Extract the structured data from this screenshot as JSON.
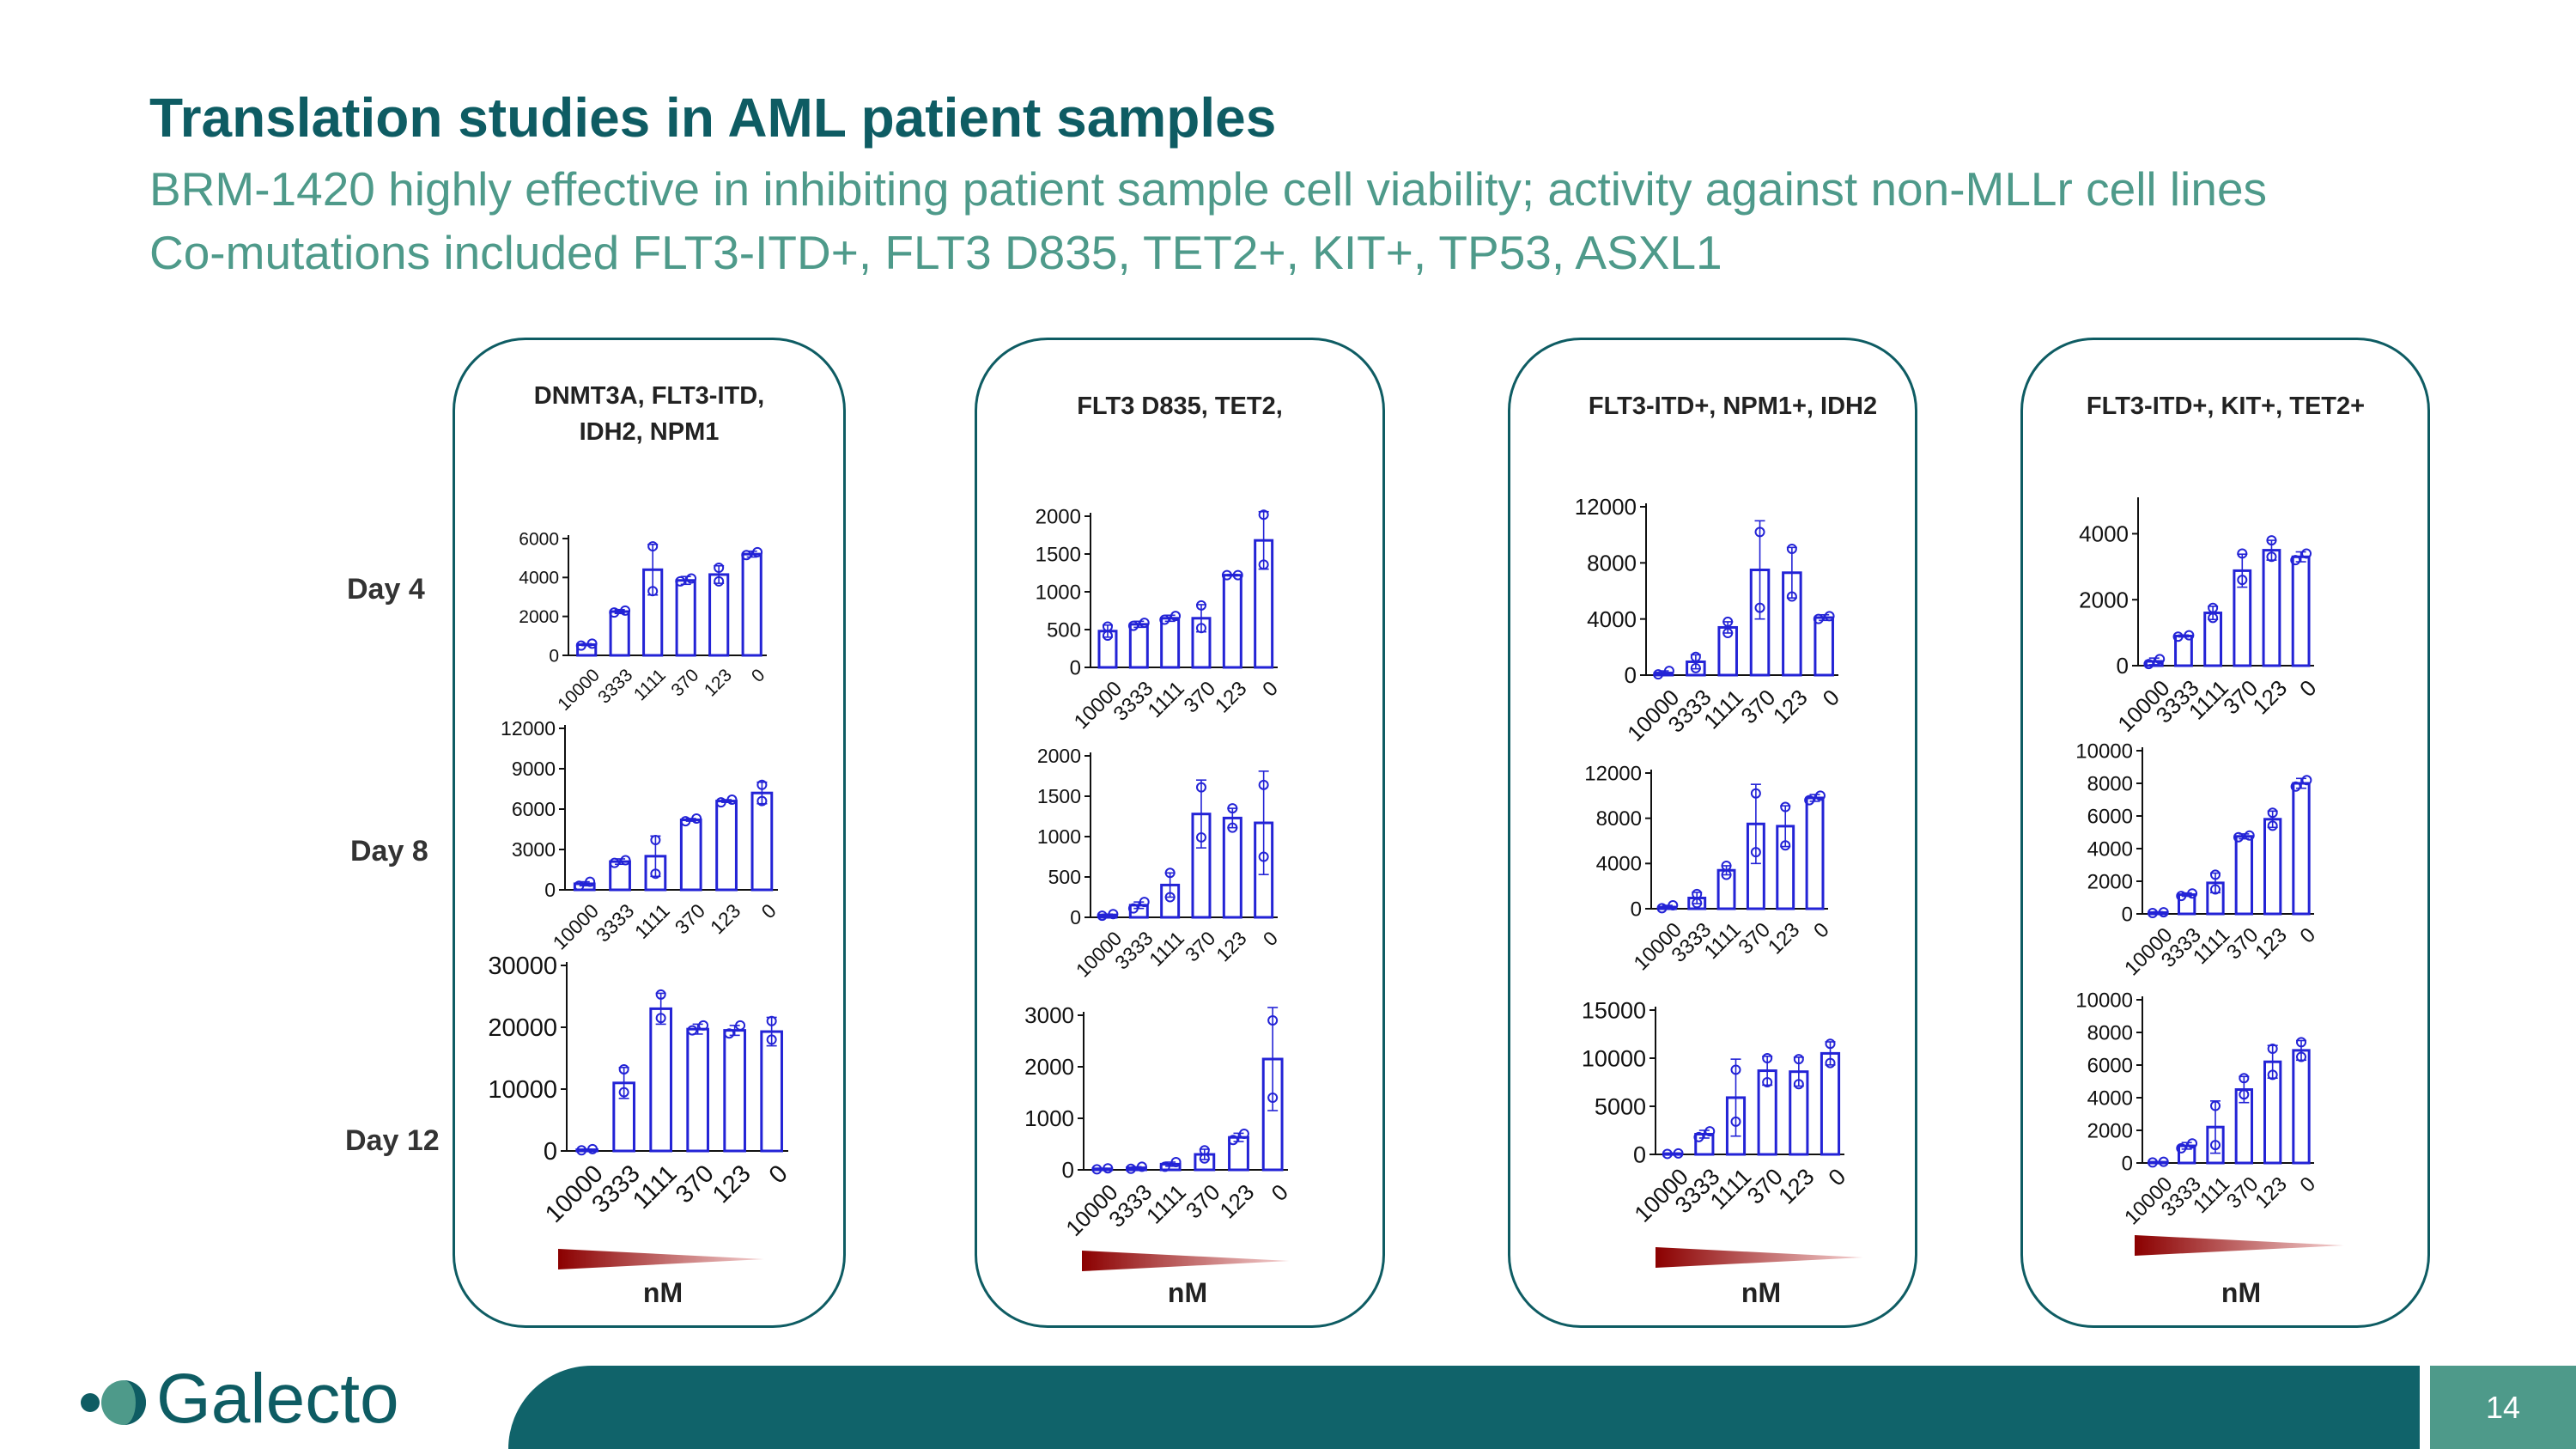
{
  "header": {
    "title": "Translation studies in AML patient samples",
    "subtitle_line1": "BRM-1420 highly effective in inhibiting patient sample cell viability; activity against non-MLLr cell lines",
    "subtitle_line2": "Co-mutations included FLT3-ITD+, FLT3 D835, TET2+, KIT+, TP53, ASXL1"
  },
  "days": [
    "Day 4",
    "Day 8",
    "Day 12"
  ],
  "footer": {
    "logo_text": "Galecto",
    "page_number": "14"
  },
  "colors": {
    "bar": "#2323d6",
    "title": "#0e5c63",
    "subtitle": "#4e9a8a",
    "gradient_dark": "#8b0000",
    "gradient_light": "#f4d0d0"
  },
  "chart_data": [
    {
      "panel": "DNMT3A, FLT3-ITD, IDH2, NPM1",
      "unit": "nM",
      "type": "bar",
      "categories": [
        "10000",
        "3333",
        "1111",
        "370",
        "123",
        "0"
      ],
      "charts": [
        {
          "day": "Day 4",
          "ylim": [
            0,
            6000
          ],
          "yticks": [
            0,
            2000,
            4000,
            6000
          ],
          "values": [
            550,
            2250,
            4400,
            3850,
            4150,
            5200
          ],
          "errors": [
            50,
            100,
            1300,
            200,
            450,
            150
          ],
          "points": [
            [
              500,
              600
            ],
            [
              2200,
              2300
            ],
            [
              5600,
              3300
            ],
            [
              3800,
              3950
            ],
            [
              3800,
              4500
            ],
            [
              5150,
              5300
            ]
          ]
        },
        {
          "day": "Day 8",
          "ylim": [
            0,
            12000
          ],
          "yticks": [
            0,
            3000,
            6000,
            9000,
            12000
          ],
          "values": [
            450,
            2100,
            2500,
            5200,
            6600,
            7200
          ],
          "errors": [
            150,
            200,
            1500,
            100,
            100,
            800
          ],
          "points": [
            [
              300,
              600
            ],
            [
              2000,
              2200
            ],
            [
              1200,
              3700
            ],
            [
              5100,
              5300
            ],
            [
              6500,
              6700
            ],
            [
              7800,
              6600
            ]
          ]
        },
        {
          "day": "Day 12",
          "ylim": [
            0,
            30000
          ],
          "yticks": [
            0,
            10000,
            20000,
            30000
          ],
          "values": [
            200,
            11000,
            23000,
            19700,
            19500,
            19300
          ],
          "errors": [
            100,
            2500,
            2500,
            800,
            800,
            2300
          ],
          "points": [
            [
              100,
              300
            ],
            [
              9500,
              13200
            ],
            [
              21500,
              25300
            ],
            [
              19500,
              20300
            ],
            [
              19000,
              20300
            ],
            [
              18000,
              21000
            ]
          ]
        }
      ]
    },
    {
      "panel": "FLT3 D835, TET2,",
      "unit": "nM",
      "type": "bar",
      "categories": [
        "10000",
        "3333",
        "1111",
        "370",
        "123",
        "0"
      ],
      "charts": [
        {
          "day": "Day 4",
          "ylim": [
            0,
            2000
          ],
          "yticks": [
            0,
            500,
            1000,
            1500,
            2000
          ],
          "values": [
            480,
            570,
            650,
            650,
            1220,
            1680
          ],
          "errors": [
            80,
            40,
            40,
            180,
            10,
            380
          ],
          "points": [
            [
              420,
              540
            ],
            [
              550,
              590
            ],
            [
              630,
              680
            ],
            [
              520,
              820
            ],
            [
              1220,
              1220
            ],
            [
              1360,
              2020
            ]
          ]
        },
        {
          "day": "Day 8",
          "ylim": [
            0,
            2000
          ],
          "yticks": [
            0,
            500,
            1000,
            1500,
            2000
          ],
          "values": [
            30,
            150,
            400,
            1280,
            1230,
            1170
          ],
          "errors": [
            10,
            40,
            150,
            420,
            120,
            640
          ],
          "points": [
            [
              20,
              40
            ],
            [
              110,
              190
            ],
            [
              250,
              550
            ],
            [
              990,
              1610
            ],
            [
              1110,
              1350
            ],
            [
              750,
              1640
            ]
          ]
        },
        {
          "day": "Day 12",
          "ylim": [
            0,
            3000
          ],
          "yticks": [
            0,
            1000,
            2000,
            3000
          ],
          "values": [
            20,
            40,
            110,
            300,
            630,
            2150
          ],
          "errors": [
            10,
            20,
            40,
            100,
            80,
            1000
          ],
          "points": [
            [
              10,
              30
            ],
            [
              20,
              60
            ],
            [
              60,
              150
            ],
            [
              220,
              380
            ],
            [
              580,
              700
            ],
            [
              1400,
              2900
            ]
          ]
        }
      ]
    },
    {
      "panel": "FLT3-ITD+, NPM1+, IDH2",
      "unit": "nM",
      "type": "bar",
      "categories": [
        "10000",
        "3333",
        "1111",
        "370",
        "123",
        "0"
      ],
      "charts": [
        {
          "day": "Day 4",
          "ylim": [
            0,
            12000
          ],
          "yticks": [
            0,
            4000,
            8000,
            12000
          ],
          "values": [
            150,
            950,
            3400,
            7500,
            7300,
            4100
          ],
          "errors": [
            150,
            500,
            400,
            3500,
            1800,
            200
          ],
          "points": [
            [
              50,
              300
            ],
            [
              500,
              1300
            ],
            [
              3000,
              3800
            ],
            [
              4800,
              10200
            ],
            [
              5600,
              9000
            ],
            [
              4000,
              4200
            ]
          ]
        },
        {
          "day": "Day 8",
          "ylim": [
            0,
            12000
          ],
          "yticks": [
            0,
            4000,
            8000,
            12000
          ],
          "values": [
            150,
            950,
            3400,
            7500,
            7300,
            9800
          ],
          "errors": [
            150,
            500,
            400,
            3500,
            1800,
            300
          ],
          "points": [
            [
              50,
              300
            ],
            [
              500,
              1300
            ],
            [
              3000,
              3800
            ],
            [
              5000,
              10200
            ],
            [
              5600,
              9000
            ],
            [
              9600,
              10000
            ]
          ]
        },
        {
          "day": "Day 12",
          "ylim": [
            0,
            15000
          ],
          "yticks": [
            0,
            5000,
            10000,
            15000
          ],
          "values": [
            80,
            2100,
            5900,
            8700,
            8600,
            10500
          ],
          "errors": [
            50,
            400,
            4000,
            1500,
            1500,
            1200
          ],
          "points": [
            [
              50,
              100
            ],
            [
              1800,
              2400
            ],
            [
              3400,
              8800
            ],
            [
              7500,
              10000
            ],
            [
              7300,
              9900
            ],
            [
              9500,
              11500
            ]
          ]
        }
      ]
    },
    {
      "panel": "FLT3-ITD+, KIT+, TET2+",
      "unit": "nM",
      "type": "bar",
      "categories": [
        "10000",
        "3333",
        "1111",
        "370",
        "123",
        "0"
      ],
      "charts": [
        {
          "day": "Day 4",
          "ylim": [
            0,
            5000
          ],
          "yticks": [
            0,
            2000,
            4000
          ],
          "values": [
            130,
            900,
            1600,
            2880,
            3500,
            3300
          ],
          "errors": [
            100,
            30,
            200,
            500,
            300,
            150
          ],
          "points": [
            [
              50,
              200
            ],
            [
              880,
              920
            ],
            [
              1450,
              1750
            ],
            [
              2600,
              3400
            ],
            [
              3300,
              3800
            ],
            [
              3200,
              3400
            ]
          ]
        },
        {
          "day": "Day 8",
          "ylim": [
            0,
            10000
          ],
          "yticks": [
            0,
            2000,
            4000,
            6000,
            8000,
            10000
          ],
          "values": [
            80,
            1180,
            1900,
            4750,
            5800,
            8000
          ],
          "errors": [
            50,
            100,
            600,
            150,
            500,
            300
          ],
          "points": [
            [
              50,
              100
            ],
            [
              1100,
              1250
            ],
            [
              1500,
              2400
            ],
            [
              4700,
              4800
            ],
            [
              5400,
              6200
            ],
            [
              7800,
              8200
            ]
          ]
        },
        {
          "day": "Day 12",
          "ylim": [
            0,
            10000
          ],
          "yticks": [
            0,
            2000,
            4000,
            6000,
            8000,
            10000
          ],
          "values": [
            50,
            1050,
            2200,
            4500,
            6200,
            6900
          ],
          "errors": [
            30,
            200,
            1600,
            800,
            1000,
            600
          ],
          "points": [
            [
              30,
              70
            ],
            [
              900,
              1200
            ],
            [
              1100,
              3500
            ],
            [
              4200,
              5200
            ],
            [
              5400,
              7000
            ],
            [
              6500,
              7400
            ]
          ]
        }
      ]
    }
  ]
}
